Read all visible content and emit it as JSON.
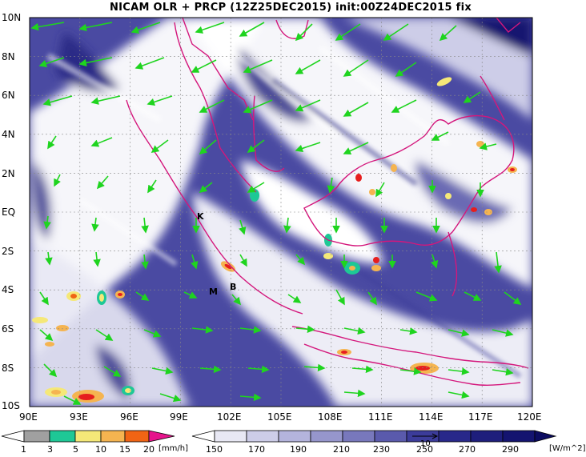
{
  "title": "NICAM OLR + PRCP (12Z25DEC2015) init:00Z24DEC2015 fix",
  "map": {
    "lat_labels": [
      "10N",
      "8N",
      "6N",
      "4N",
      "2N",
      "EQ",
      "2S",
      "4S",
      "6S",
      "8S",
      "10S"
    ],
    "lon_labels": [
      "90E",
      "93E",
      "96E",
      "99E",
      "102E",
      "105E",
      "108E",
      "111E",
      "114E",
      "117E",
      "120E"
    ],
    "extent": {
      "lon": [
        90,
        120
      ],
      "lat": [
        -10,
        10
      ]
    },
    "grid": true,
    "places": [
      {
        "label": "K",
        "lon": 100.8,
        "lat": -0.1
      },
      {
        "label": "M",
        "lon": 101.4,
        "lat": -3.9
      },
      {
        "label": "B",
        "lon": 102.4,
        "lat": -3.8
      }
    ],
    "colors": {
      "coast": "#d4177c",
      "wind": "#1fd41f",
      "cloud_dark": "#1e1e82",
      "cloud_light": "#ffffff"
    }
  },
  "precip_bar": {
    "ticks": [
      "1",
      "3",
      "5",
      "10",
      "15",
      "20"
    ],
    "unit": "[mm/h]",
    "colors": [
      "#a0a0a0",
      "#1ec896",
      "#f5e878",
      "#f5b450",
      "#f06414",
      "#e61e1e",
      "#e6148c"
    ]
  },
  "olr_bar": {
    "ticks": [
      "150",
      "170",
      "190",
      "210",
      "230",
      "250",
      "270",
      "290"
    ],
    "unit": "[W/m^2]",
    "vector_label": "10",
    "colors": [
      "#ffffff",
      "#e8e8f4",
      "#cdcde8",
      "#b4b4dc",
      "#9696cc",
      "#7878bc",
      "#5a5aac",
      "#3c3c9a",
      "#28288a",
      "#1e1e7c",
      "#141470"
    ]
  }
}
